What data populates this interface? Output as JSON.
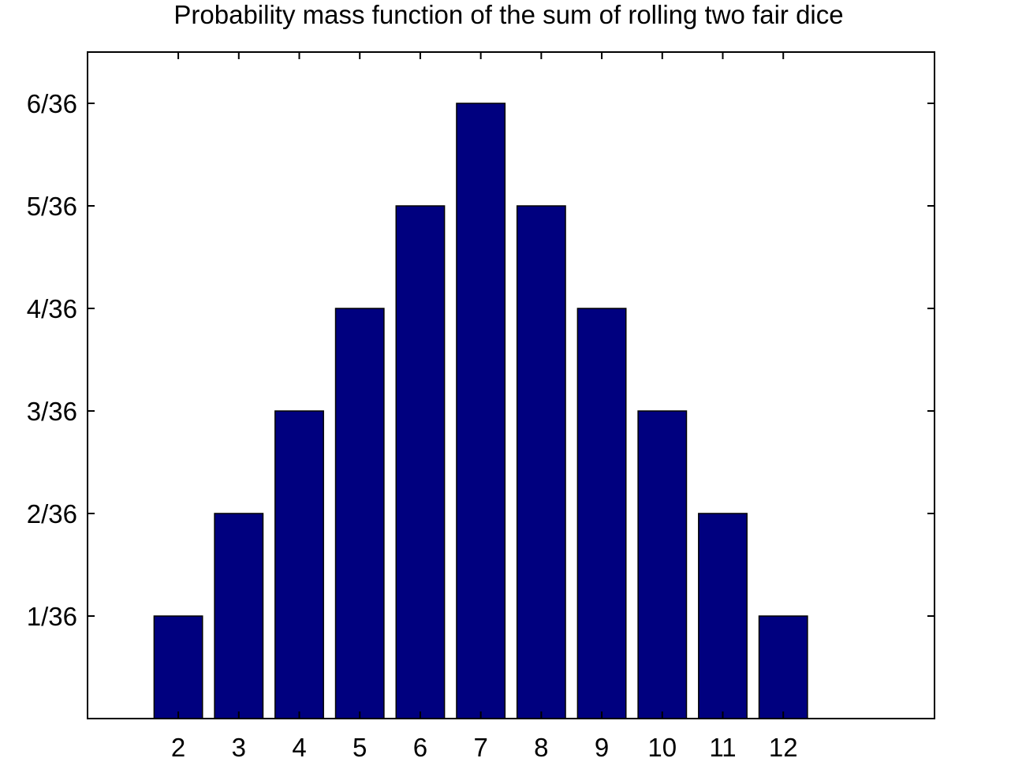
{
  "chart_data": {
    "type": "bar",
    "title": "Probability mass function of the sum of rolling two fair dice",
    "xlabel": "",
    "ylabel": "",
    "categories": [
      2,
      3,
      4,
      5,
      6,
      7,
      8,
      9,
      10,
      11,
      12
    ],
    "values": [
      0.02778,
      0.05556,
      0.08333,
      0.11111,
      0.13889,
      0.16667,
      0.13889,
      0.11111,
      0.08333,
      0.05556,
      0.02778
    ],
    "value_labels": [
      "1/36",
      "2/36",
      "3/36",
      "4/36",
      "5/36",
      "6/36",
      "5/36",
      "4/36",
      "3/36",
      "2/36",
      "1/36"
    ],
    "xlim": [
      0.5,
      14.5
    ],
    "ylim": [
      0,
      0.18056
    ],
    "xticks": [
      2,
      3,
      4,
      5,
      6,
      7,
      8,
      9,
      10,
      11,
      12
    ],
    "xtick_labels": [
      "2",
      "3",
      "4",
      "5",
      "6",
      "7",
      "8",
      "9",
      "10",
      "11",
      "12"
    ],
    "yticks": [
      0.02778,
      0.05556,
      0.08333,
      0.11111,
      0.13889,
      0.16667
    ],
    "ytick_labels": [
      "1/36",
      "2/36",
      "3/36",
      "4/36",
      "5/36",
      "6/36"
    ],
    "grid": false,
    "bar_color": "#00007f",
    "bar_edge_color": "#000000"
  }
}
